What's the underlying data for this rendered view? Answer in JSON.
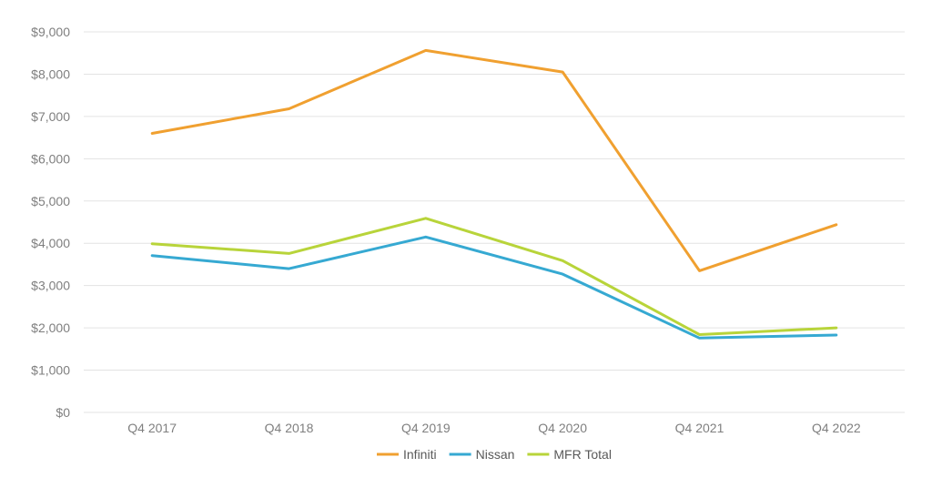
{
  "chart_data": {
    "type": "line",
    "title": "",
    "xlabel": "",
    "ylabel": "",
    "categories": [
      "Q4 2017",
      "Q4 2018",
      "Q4 2019",
      "Q4 2020",
      "Q4 2021",
      "Q4 2022"
    ],
    "ylim": [
      0,
      9000
    ],
    "yticks": [
      0,
      1000,
      2000,
      3000,
      4000,
      5000,
      6000,
      7000,
      8000,
      9000
    ],
    "ytick_labels": [
      "$0",
      "$1,000",
      "$2,000",
      "$3,000",
      "$4,000",
      "$5,000",
      "$6,000",
      "$7,000",
      "$8,000",
      "$9,000"
    ],
    "grid": true,
    "legend_position": "bottom",
    "series": [
      {
        "name": "Infiniti",
        "color": "#f0a030",
        "values": [
          6600,
          7180,
          8560,
          8050,
          3350,
          4440
        ]
      },
      {
        "name": "Nissan",
        "color": "#36a9d2",
        "values": [
          3710,
          3400,
          4150,
          3270,
          1760,
          1830
        ]
      },
      {
        "name": "MFR Total",
        "color": "#b8d43a",
        "values": [
          3990,
          3760,
          4590,
          3590,
          1840,
          2000
        ]
      }
    ]
  }
}
